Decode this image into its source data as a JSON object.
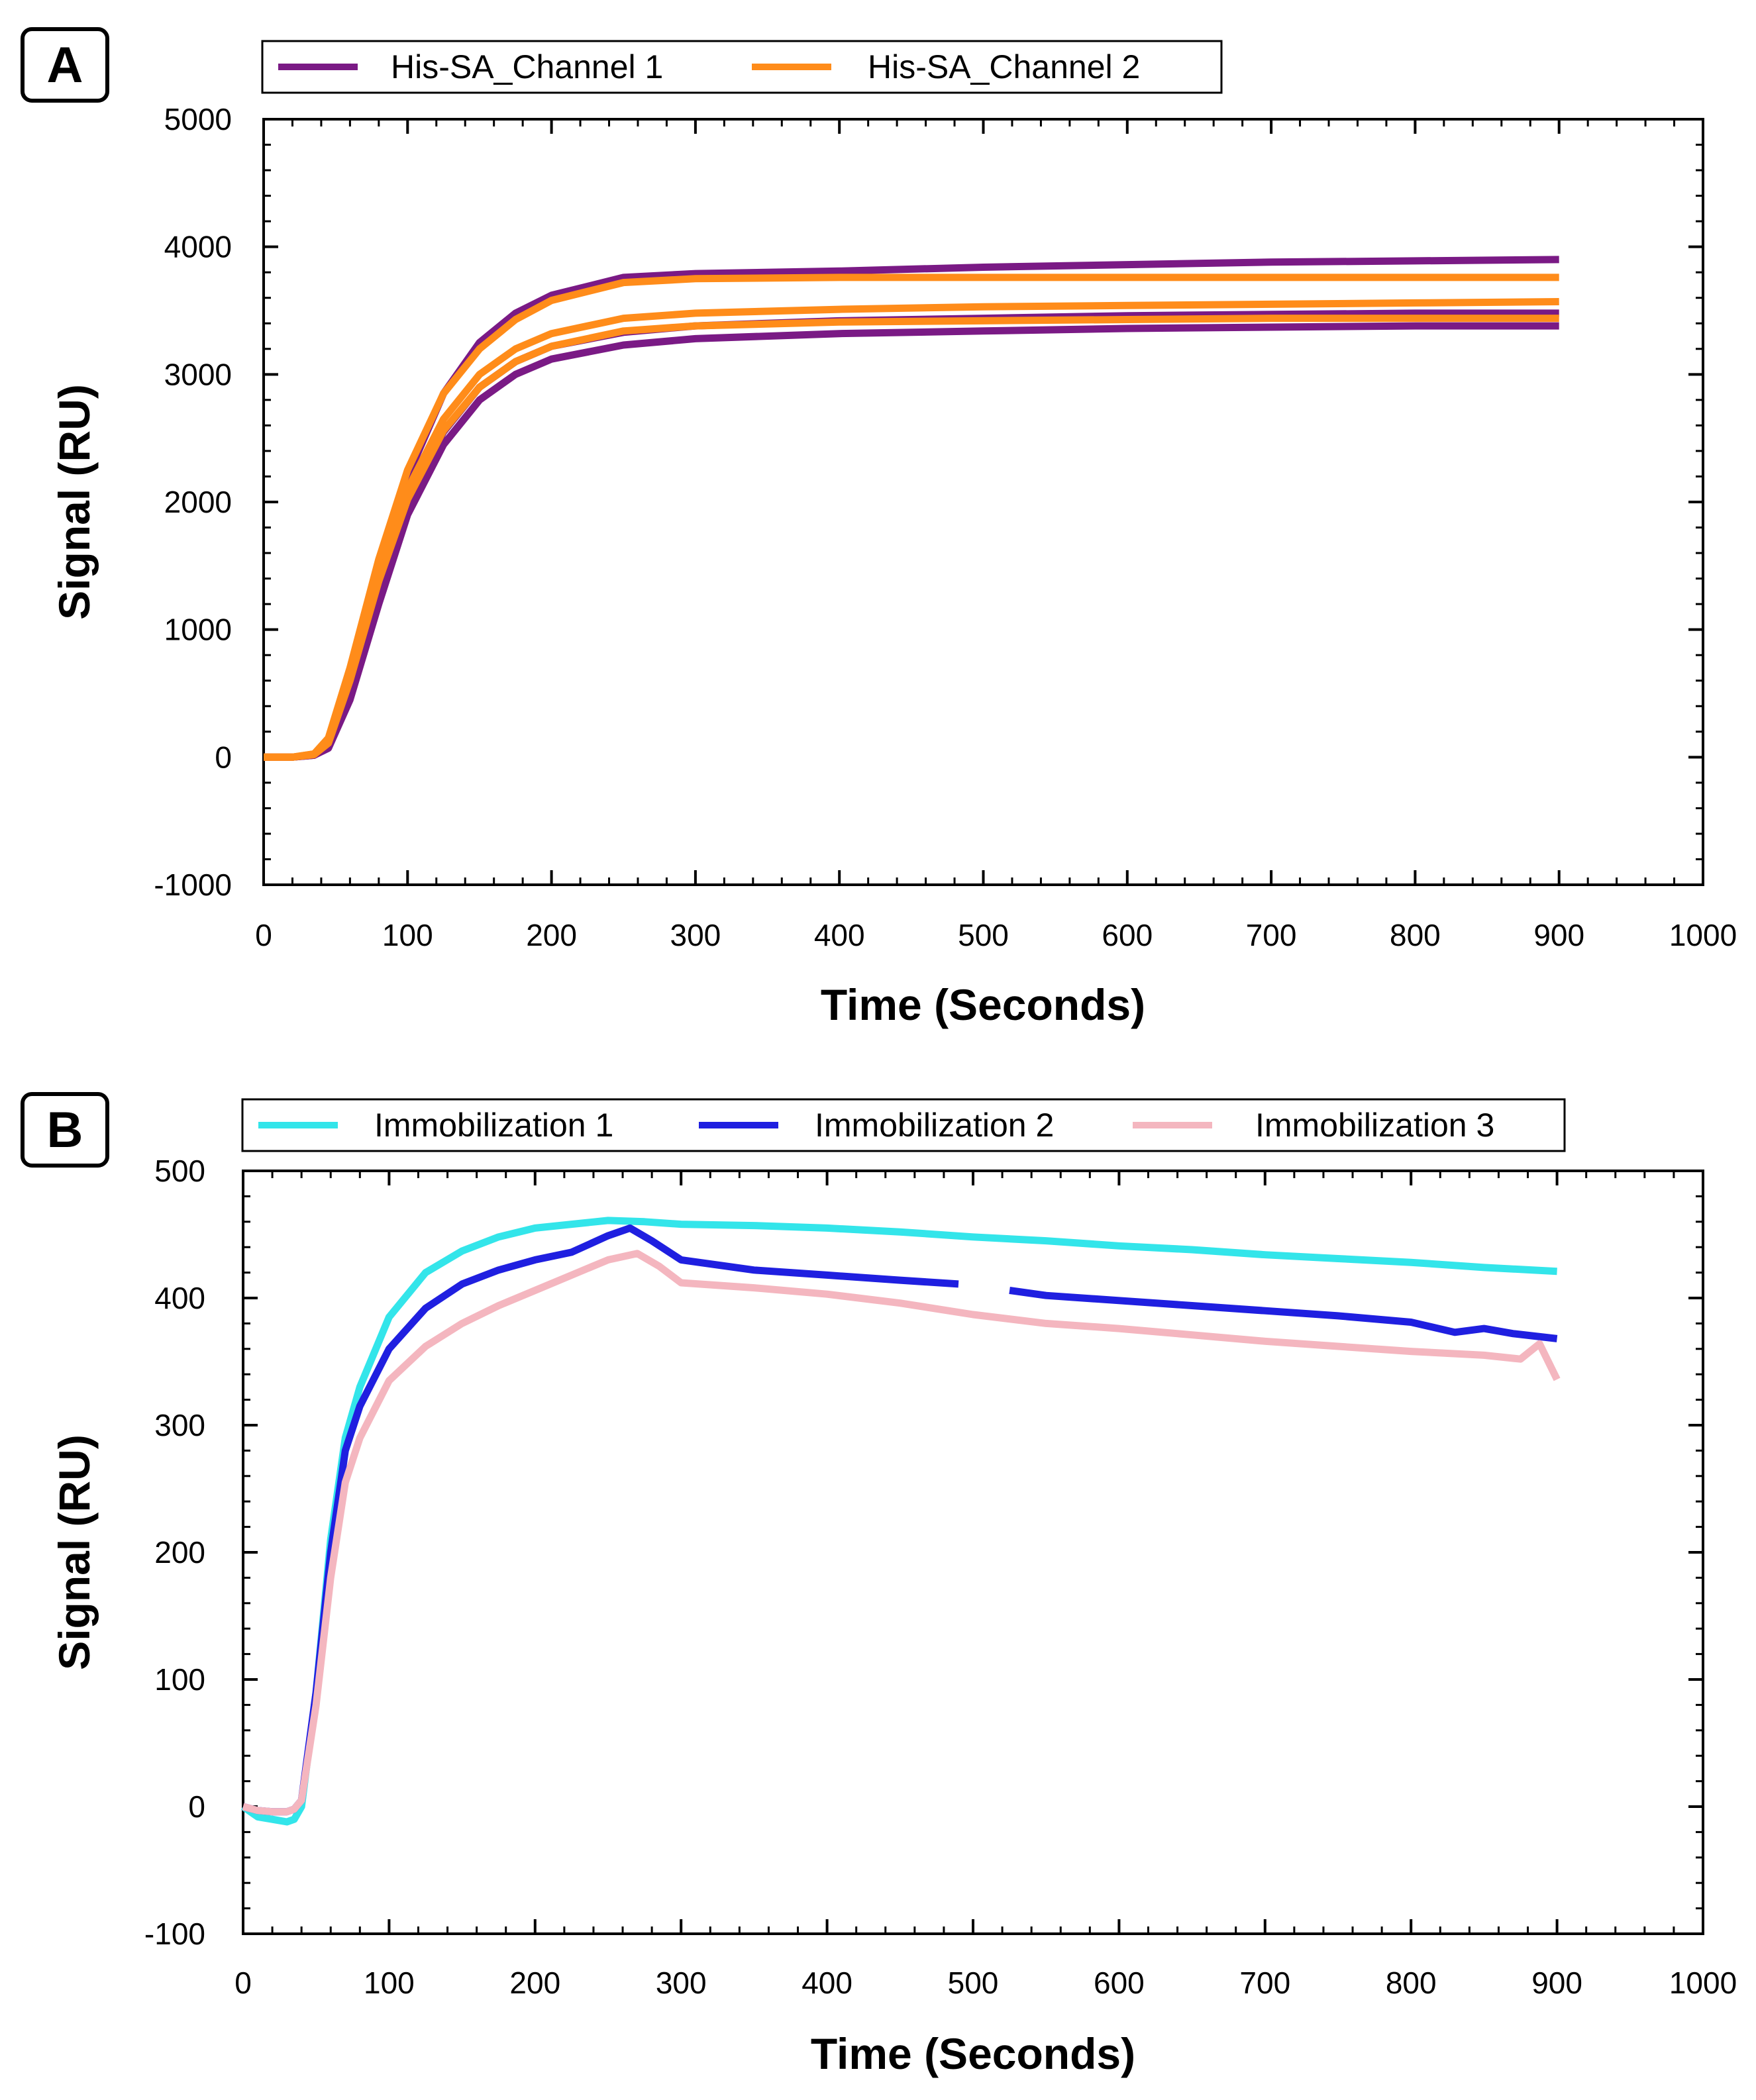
{
  "chart_data": [
    {
      "panel_label": "A",
      "type": "line",
      "title": "",
      "xlabel": "Time (Seconds)",
      "ylabel": "Signal (RU)",
      "xlim": [
        0,
        1000
      ],
      "ylim": [
        -1000,
        5000
      ],
      "xticks": [
        0,
        100,
        200,
        300,
        400,
        500,
        600,
        700,
        800,
        900,
        1000
      ],
      "yticks": [
        -1000,
        0,
        1000,
        2000,
        3000,
        4000,
        5000
      ],
      "grid": false,
      "legend_placement": "top",
      "legend": [
        {
          "name": "His-SA_Channel 1",
          "color": "#7a1a85"
        },
        {
          "name": "His-SA_Channel 2",
          "color": "#ff8c1a"
        }
      ],
      "series": [
        {
          "group": "His-SA_Channel 1",
          "color": "#7a1a85",
          "x": [
            0,
            20,
            35,
            45,
            60,
            80,
            100,
            125,
            150,
            175,
            200,
            250,
            300,
            400,
            500,
            600,
            700,
            800,
            900
          ],
          "y": [
            0,
            0,
            20,
            120,
            600,
            1450,
            2200,
            2850,
            3250,
            3480,
            3620,
            3760,
            3790,
            3810,
            3840,
            3860,
            3880,
            3890,
            3900
          ]
        },
        {
          "group": "His-SA_Channel 1",
          "color": "#7a1a85",
          "x": [
            0,
            20,
            35,
            45,
            60,
            80,
            100,
            125,
            150,
            175,
            200,
            250,
            300,
            400,
            500,
            600,
            700,
            800,
            900
          ],
          "y": [
            0,
            0,
            15,
            70,
            450,
            1200,
            1900,
            2450,
            2800,
            3000,
            3120,
            3230,
            3280,
            3320,
            3340,
            3360,
            3370,
            3380,
            3380
          ]
        },
        {
          "group": "His-SA_Channel 1",
          "color": "#7a1a85",
          "x": [
            0,
            20,
            35,
            45,
            60,
            80,
            100,
            125,
            150,
            175,
            200,
            250,
            300,
            400,
            500,
            600,
            700,
            800,
            900
          ],
          "y": [
            0,
            0,
            15,
            80,
            500,
            1300,
            2000,
            2550,
            2900,
            3100,
            3220,
            3330,
            3380,
            3420,
            3440,
            3460,
            3470,
            3480,
            3480
          ]
        },
        {
          "group": "His-SA_Channel 2",
          "color": "#ff8c1a",
          "x": [
            0,
            20,
            35,
            45,
            60,
            80,
            100,
            125,
            150,
            175,
            200,
            250,
            300,
            400,
            500,
            600,
            700,
            800,
            900
          ],
          "y": [
            0,
            0,
            25,
            150,
            700,
            1550,
            2250,
            2850,
            3200,
            3430,
            3580,
            3720,
            3750,
            3760,
            3760,
            3760,
            3760,
            3760,
            3760
          ]
        },
        {
          "group": "His-SA_Channel 2",
          "color": "#ff8c1a",
          "x": [
            0,
            20,
            35,
            45,
            60,
            80,
            100,
            125,
            150,
            175,
            200,
            250,
            300,
            400,
            500,
            600,
            700,
            800,
            900
          ],
          "y": [
            0,
            0,
            25,
            130,
            650,
            1450,
            2100,
            2650,
            3000,
            3200,
            3320,
            3440,
            3480,
            3510,
            3530,
            3540,
            3550,
            3560,
            3570
          ]
        },
        {
          "group": "His-SA_Channel 2",
          "color": "#ff8c1a",
          "x": [
            0,
            20,
            35,
            45,
            60,
            80,
            100,
            125,
            150,
            175,
            200,
            250,
            300,
            400,
            500,
            600,
            700,
            800,
            900
          ],
          "y": [
            0,
            0,
            20,
            110,
            600,
            1380,
            2020,
            2560,
            2900,
            3100,
            3220,
            3340,
            3380,
            3410,
            3420,
            3430,
            3440,
            3440,
            3440
          ]
        }
      ]
    },
    {
      "panel_label": "B",
      "type": "line",
      "title": "",
      "xlabel": "Time (Seconds)",
      "ylabel": "Signal (RU)",
      "xlim": [
        0,
        1000
      ],
      "ylim": [
        -100,
        500
      ],
      "xticks": [
        0,
        100,
        200,
        300,
        400,
        500,
        600,
        700,
        800,
        900,
        1000
      ],
      "yticks": [
        -100,
        0,
        100,
        200,
        300,
        400,
        500
      ],
      "grid": false,
      "legend_placement": "top",
      "legend": [
        {
          "name": "Immobilization 1",
          "color": "#33e5ea"
        },
        {
          "name": "Immobilization 2",
          "color": "#1f1fe0"
        },
        {
          "name": "Immobilization 3",
          "color": "#f4b6bf"
        }
      ],
      "series": [
        {
          "name": "Immobilization 1",
          "color": "#33e5ea",
          "x": [
            0,
            10,
            20,
            30,
            35,
            40,
            50,
            60,
            70,
            80,
            100,
            125,
            150,
            175,
            200,
            225,
            250,
            275,
            300,
            350,
            400,
            450,
            500,
            550,
            600,
            650,
            700,
            750,
            800,
            850,
            900
          ],
          "y": [
            0,
            -8,
            -10,
            -12,
            -10,
            0,
            90,
            210,
            290,
            330,
            385,
            420,
            437,
            448,
            455,
            458,
            461,
            460,
            458,
            457,
            455,
            452,
            448,
            445,
            441,
            438,
            434,
            431,
            428,
            424,
            421
          ]
        },
        {
          "name": "Immobilization 2",
          "color": "#1f1fe0",
          "x": [
            0,
            10,
            20,
            30,
            35,
            40,
            50,
            60,
            70,
            80,
            100,
            125,
            150,
            175,
            200,
            225,
            250,
            265,
            280,
            300,
            350,
            400,
            450,
            490
          ],
          "y": [
            0,
            -3,
            -4,
            -4,
            -2,
            5,
            90,
            200,
            280,
            315,
            360,
            392,
            411,
            422,
            430,
            436,
            449,
            455,
            445,
            430,
            422,
            418,
            414,
            411
          ]
        },
        {
          "name": "Immobilization 2",
          "color": "#1f1fe0",
          "x": [
            525,
            550,
            600,
            650,
            700,
            750,
            800,
            830,
            850,
            870,
            900
          ],
          "y": [
            406,
            402,
            398,
            394,
            390,
            386,
            381,
            373,
            376,
            372,
            368
          ]
        },
        {
          "name": "Immobilization 3",
          "color": "#f4b6bf",
          "x": [
            0,
            10,
            20,
            30,
            35,
            40,
            50,
            60,
            70,
            80,
            100,
            125,
            150,
            175,
            200,
            225,
            250,
            270,
            285,
            300,
            350,
            400,
            450,
            500,
            550,
            600,
            650,
            700,
            750,
            800,
            850,
            875,
            888,
            900
          ],
          "y": [
            0,
            -3,
            -4,
            -4,
            -2,
            5,
            80,
            180,
            255,
            290,
            335,
            362,
            380,
            394,
            406,
            418,
            430,
            435,
            425,
            412,
            408,
            403,
            396,
            387,
            380,
            376,
            371,
            366,
            362,
            358,
            355,
            352,
            364,
            336
          ]
        }
      ]
    }
  ]
}
